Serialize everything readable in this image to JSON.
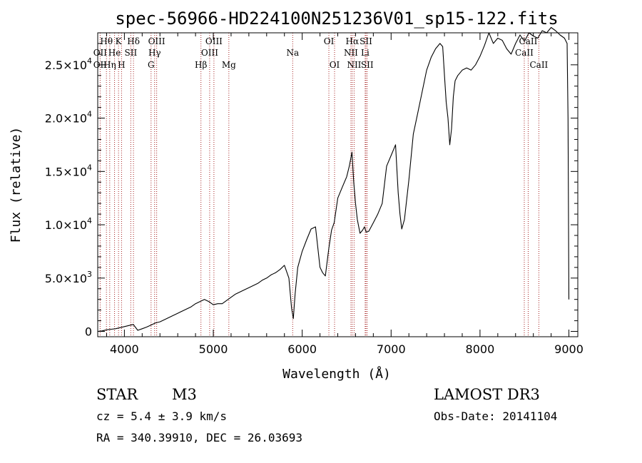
{
  "chart_data": {
    "type": "line",
    "title": "spec-56966-HD224100N251236V01_sp15-122.fits",
    "xlabel": "Wavelength (Å)",
    "ylabel": "Flux (relative)",
    "xlim": [
      3700,
      9100
    ],
    "ylim": [
      -500,
      28000
    ],
    "grid": false,
    "x_ticks": [
      {
        "value": 4000,
        "label": "4000"
      },
      {
        "value": 5000,
        "label": "5000"
      },
      {
        "value": 6000,
        "label": "6000"
      },
      {
        "value": 7000,
        "label": "7000"
      },
      {
        "value": 8000,
        "label": "8000"
      },
      {
        "value": 9000,
        "label": "9000"
      }
    ],
    "y_ticks": [
      {
        "value": 0,
        "mant": "0",
        "exp": ""
      },
      {
        "value": 5000,
        "mant": "5.0×10",
        "exp": "3"
      },
      {
        "value": 10000,
        "mant": "1.0×10",
        "exp": "4"
      },
      {
        "value": 15000,
        "mant": "1.5×10",
        "exp": "4"
      },
      {
        "value": 20000,
        "mant": "2.0×10",
        "exp": "4"
      },
      {
        "value": 25000,
        "mant": "2.5×10",
        "exp": "4"
      }
    ],
    "series": [
      {
        "color": "#000000",
        "x": [
          3700,
          3750,
          3800,
          3850,
          3900,
          3950,
          4000,
          4050,
          4100,
          4150,
          4200,
          4250,
          4300,
          4350,
          4400,
          4450,
          4500,
          4550,
          4600,
          4650,
          4700,
          4750,
          4800,
          4850,
          4900,
          4950,
          5000,
          5050,
          5100,
          5150,
          5200,
          5250,
          5300,
          5350,
          5400,
          5450,
          5500,
          5550,
          5600,
          5650,
          5700,
          5750,
          5800,
          5850,
          5880,
          5900,
          5920,
          5950,
          6000,
          6050,
          6100,
          6150,
          6200,
          6230,
          6260,
          6300,
          6330,
          6360,
          6400,
          6450,
          6500,
          6530,
          6560,
          6580,
          6600,
          6620,
          6650,
          6680,
          6700,
          6720,
          6750,
          6800,
          6850,
          6900,
          6950,
          7000,
          7050,
          7080,
          7100,
          7120,
          7150,
          7200,
          7250,
          7300,
          7350,
          7400,
          7450,
          7500,
          7550,
          7580,
          7600,
          7620,
          7640,
          7660,
          7680,
          7700,
          7720,
          7750,
          7800,
          7850,
          7900,
          7950,
          8000,
          8050,
          8100,
          8150,
          8200,
          8250,
          8300,
          8350,
          8400,
          8450,
          8500,
          8550,
          8600,
          8650,
          8700,
          8750,
          8800,
          8850,
          8900,
          8950,
          8980,
          8990,
          9000
        ],
        "y": [
          0,
          50,
          150,
          200,
          250,
          350,
          450,
          550,
          650,
          100,
          250,
          400,
          600,
          800,
          900,
          1100,
          1300,
          1500,
          1700,
          1900,
          2100,
          2300,
          2600,
          2800,
          3000,
          2800,
          2500,
          2600,
          2600,
          2900,
          3200,
          3500,
          3700,
          3900,
          4100,
          4300,
          4500,
          4800,
          5000,
          5300,
          5500,
          5800,
          6200,
          5000,
          2200,
          1200,
          3500,
          6000,
          7500,
          8600,
          9600,
          9800,
          6000,
          5500,
          5200,
          7800,
          9500,
          10200,
          12500,
          13500,
          14500,
          15500,
          16800,
          14000,
          12000,
          10500,
          9200,
          9500,
          9800,
          9300,
          9400,
          10200,
          11000,
          12000,
          15500,
          16500,
          17500,
          13000,
          11000,
          9600,
          10500,
          14200,
          18500,
          20500,
          22500,
          24500,
          25700,
          26500,
          27000,
          26700,
          24000,
          21500,
          20000,
          17500,
          19000,
          22000,
          23500,
          24000,
          24500,
          24700,
          24500,
          25000,
          25800,
          26800,
          28000,
          27000,
          27500,
          27300,
          26500,
          26000,
          27000,
          27800,
          27200,
          28000,
          27700,
          27500,
          28200,
          28000,
          28500,
          28200,
          27800,
          27500,
          27000,
          20000,
          3000
        ]
      }
    ],
    "spectral_lines": [
      {
        "label": "Hθ",
        "wl": 3798,
        "row": 1
      },
      {
        "label": "K",
        "wl": 3934,
        "row": 1
      },
      {
        "label": "Hδ",
        "wl": 4102,
        "row": 1
      },
      {
        "label": "OIII",
        "wl": 4363,
        "row": 1
      },
      {
        "label": "OIII",
        "wl": 5007,
        "row": 1
      },
      {
        "label": "OI",
        "wl": 6300,
        "row": 1
      },
      {
        "label": "Hα",
        "wl": 6563,
        "row": 1
      },
      {
        "label": "SII",
        "wl": 6717,
        "row": 1
      },
      {
        "label": "CaII",
        "wl": 8542,
        "row": 1
      },
      {
        "label": "OII",
        "wl": 3727,
        "row": 2
      },
      {
        "label": "He",
        "wl": 3889,
        "row": 2
      },
      {
        "label": "SII",
        "wl": 4072,
        "row": 2
      },
      {
        "label": "Hγ",
        "wl": 4340,
        "row": 2
      },
      {
        "label": "OIII",
        "wl": 4959,
        "row": 2
      },
      {
        "label": "Na",
        "wl": 5893,
        "row": 2
      },
      {
        "label": "NII",
        "wl": 6548,
        "row": 2
      },
      {
        "label": "Li",
        "wl": 6708,
        "row": 2
      },
      {
        "label": "CaII",
        "wl": 8498,
        "row": 2
      },
      {
        "label": "OII",
        "wl": 3727,
        "row": 3
      },
      {
        "label": "Hη",
        "wl": 3835,
        "row": 3
      },
      {
        "label": "H",
        "wl": 3968,
        "row": 3
      },
      {
        "label": "G",
        "wl": 4300,
        "row": 3
      },
      {
        "label": "Hβ",
        "wl": 4861,
        "row": 3
      },
      {
        "label": "Mg",
        "wl": 5175,
        "row": 3
      },
      {
        "label": "OI",
        "wl": 6364,
        "row": 3
      },
      {
        "label": "NII",
        "wl": 6584,
        "row": 3
      },
      {
        "label": "SII",
        "wl": 6731,
        "row": 3
      },
      {
        "label": "CaII",
        "wl": 8662,
        "row": 3
      }
    ]
  },
  "info": {
    "class": "STAR",
    "subclass": "M3",
    "survey": "LAMOST DR3",
    "cz": "cz = 5.4 ± 3.9 km/s",
    "obs_date": "Obs-Date: 20141104",
    "coords": "RA = 340.39910, DEC =  26.03693"
  },
  "colors": {
    "line_marker": "#a52020",
    "spectrum": "#000000",
    "background": "#ffffff"
  }
}
